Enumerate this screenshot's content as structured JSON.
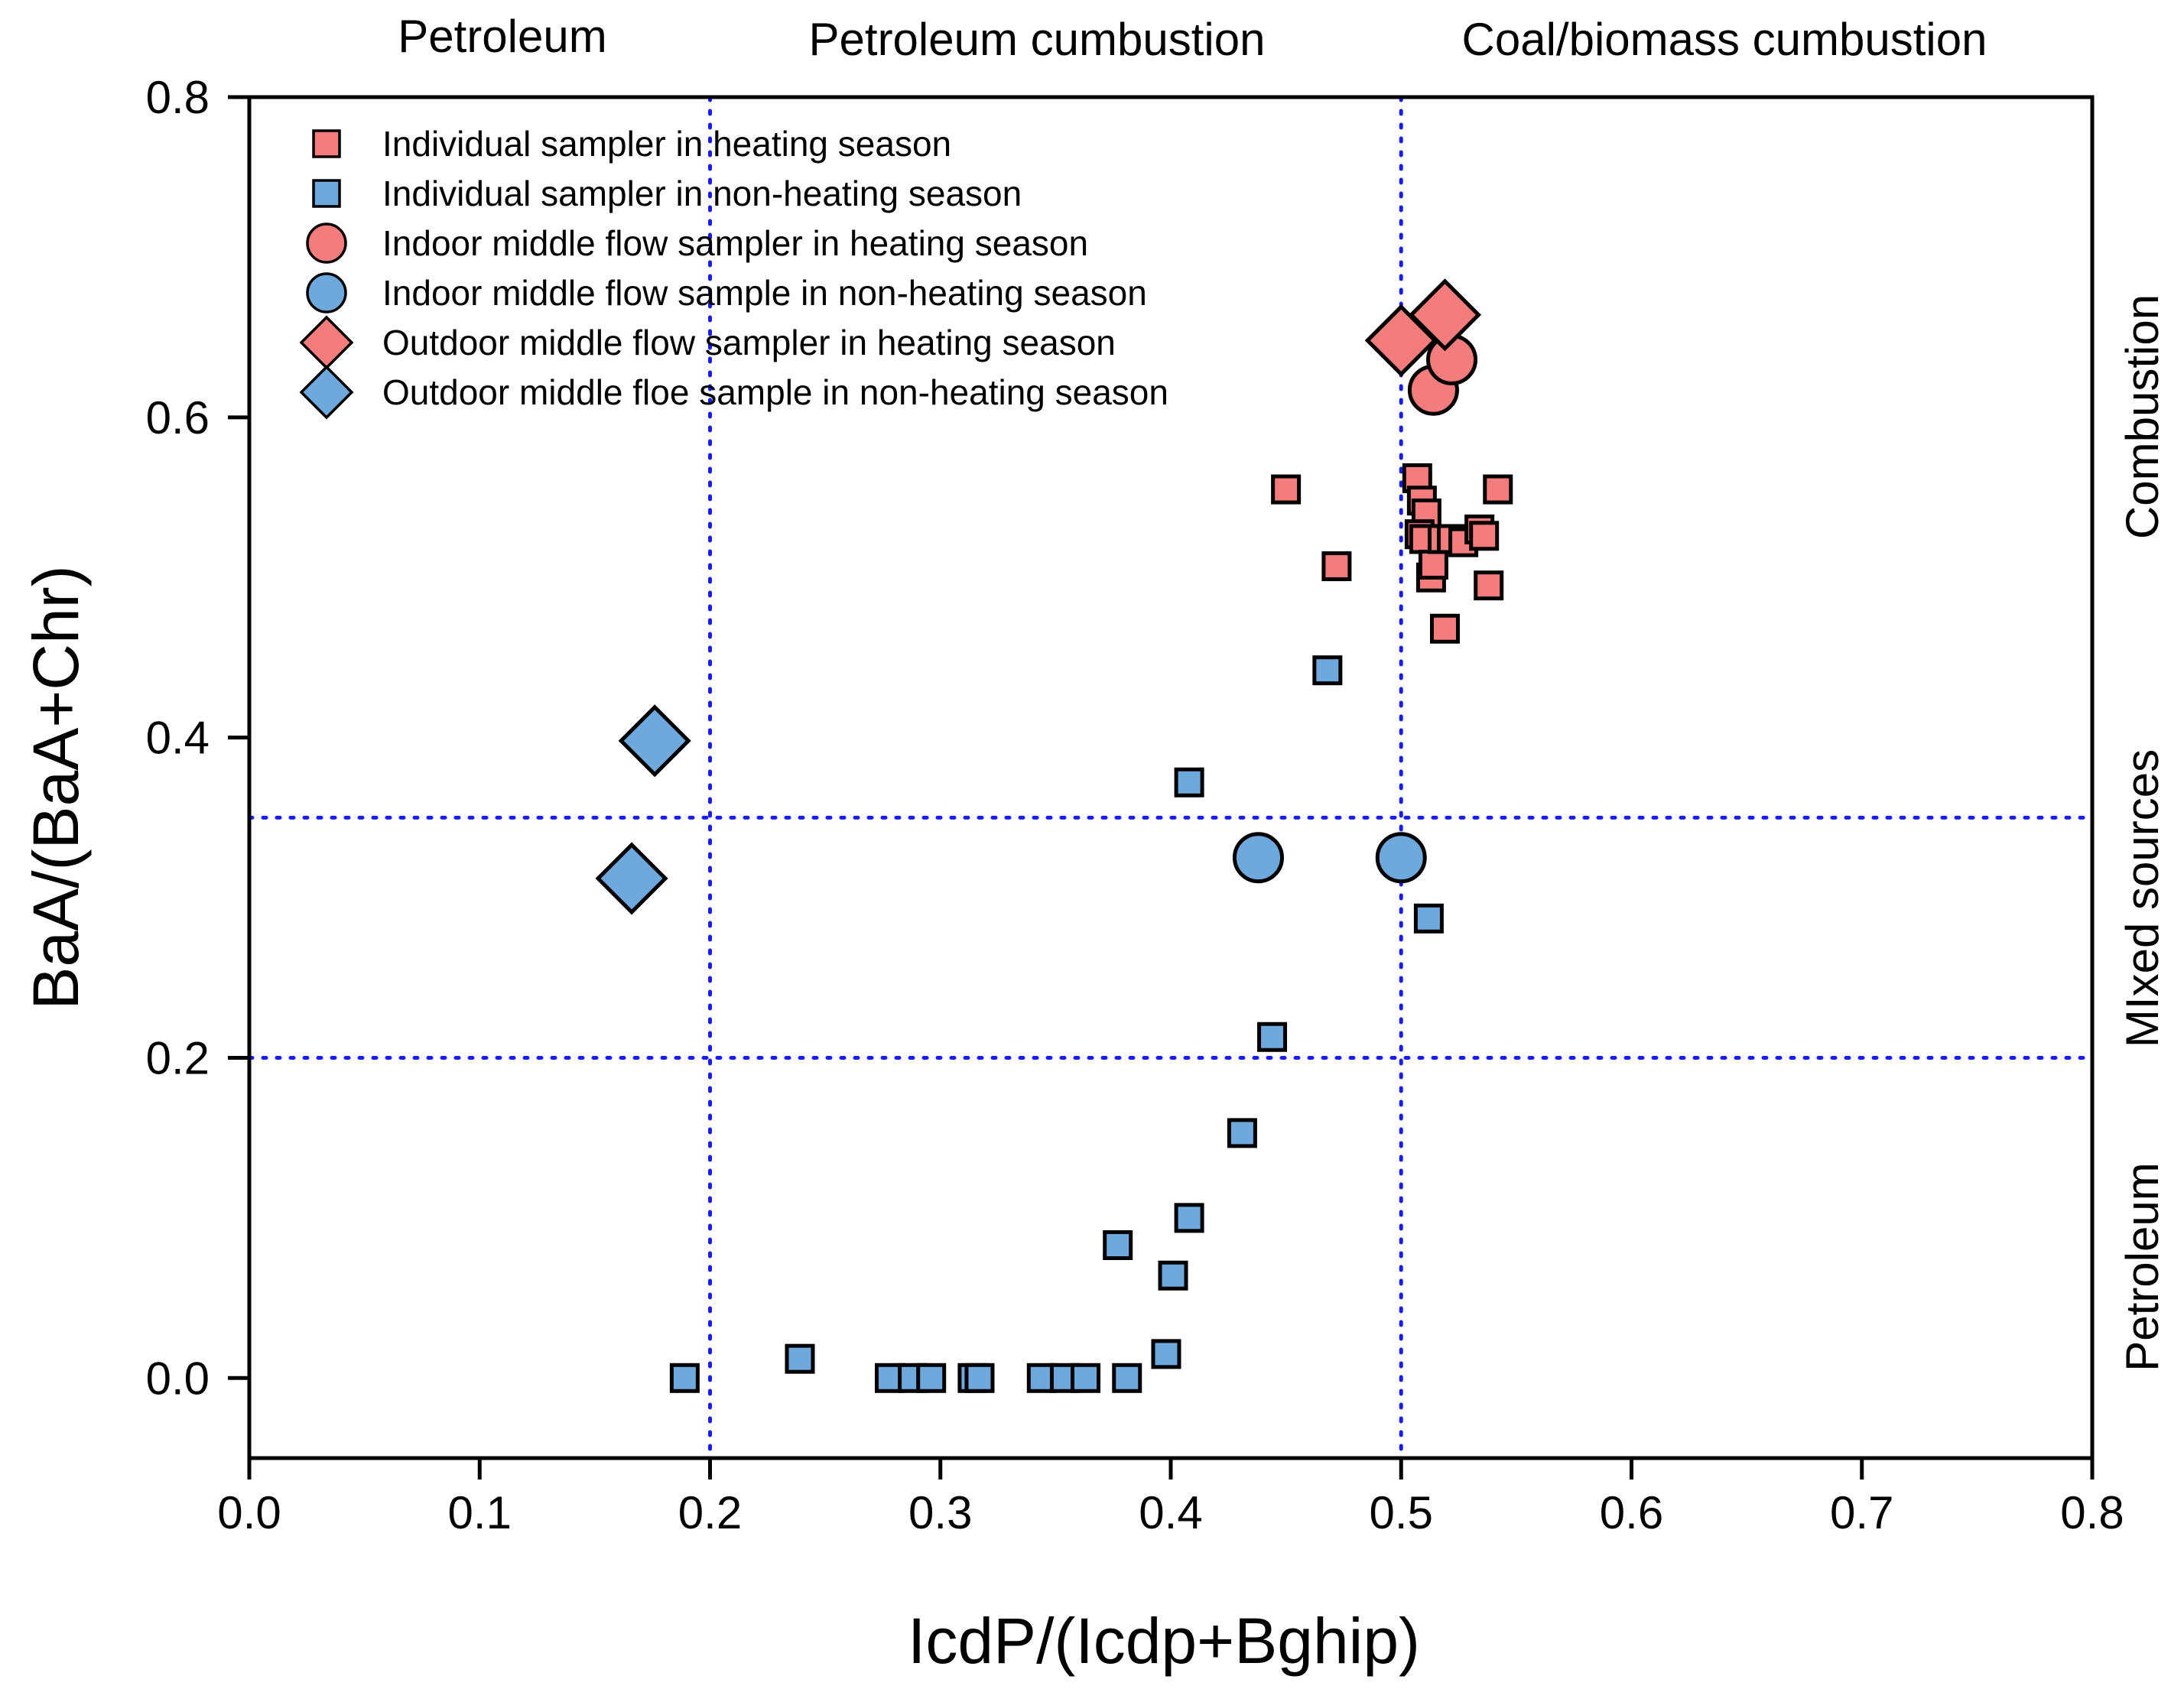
{
  "chart_data": {
    "type": "scatter",
    "xlabel": "IcdP/(Icdp+Bghip)",
    "ylabel": "BaA/(BaA+Chr)",
    "xlim": [
      0.0,
      0.8
    ],
    "ylim": [
      -0.05,
      0.8
    ],
    "x_ticks": [
      "0.0",
      "0.1",
      "0.2",
      "0.3",
      "0.4",
      "0.5",
      "0.6",
      "0.7",
      "0.8"
    ],
    "y_ticks": [
      "0.0",
      "0.2",
      "0.4",
      "0.6",
      "0.8"
    ],
    "grid": false,
    "legend_position": "top-left",
    "reference_lines": {
      "x": [
        0.2,
        0.5
      ],
      "y": [
        0.2,
        0.35
      ],
      "style": "dotted",
      "color": "#1a1aff"
    },
    "region_labels": {
      "top": [
        "Petroleum",
        "Petroleum cumbustion",
        "Coal/biomass cumbustion"
      ],
      "right": [
        "Combustion",
        "MIxed sources",
        "Petroleum"
      ]
    },
    "series": [
      {
        "name": "Individual sampler in heating season",
        "marker": "square",
        "color": "#f47c7c",
        "points": [
          [
            0.45,
            0.555
          ],
          [
            0.472,
            0.507
          ],
          [
            0.507,
            0.562
          ],
          [
            0.509,
            0.548
          ],
          [
            0.511,
            0.54
          ],
          [
            0.508,
            0.527
          ],
          [
            0.51,
            0.524
          ],
          [
            0.513,
            0.5
          ],
          [
            0.514,
            0.508
          ],
          [
            0.518,
            0.524
          ],
          [
            0.519,
            0.468
          ],
          [
            0.522,
            0.524
          ],
          [
            0.527,
            0.522
          ],
          [
            0.534,
            0.53
          ],
          [
            0.536,
            0.526
          ],
          [
            0.538,
            0.495
          ],
          [
            0.542,
            0.555
          ]
        ]
      },
      {
        "name": "Individual sampler in non-heating season",
        "marker": "square",
        "color": "#6fa8dc",
        "points": [
          [
            0.189,
            0.0
          ],
          [
            0.239,
            0.012
          ],
          [
            0.278,
            0.0
          ],
          [
            0.288,
            0.0
          ],
          [
            0.296,
            0.0
          ],
          [
            0.314,
            0.0
          ],
          [
            0.317,
            0.0
          ],
          [
            0.344,
            0.0
          ],
          [
            0.354,
            0.0
          ],
          [
            0.363,
            0.0
          ],
          [
            0.377,
            0.083
          ],
          [
            0.381,
            0.0
          ],
          [
            0.398,
            0.015
          ],
          [
            0.401,
            0.064
          ],
          [
            0.408,
            0.1
          ],
          [
            0.408,
            0.372
          ],
          [
            0.431,
            0.153
          ],
          [
            0.444,
            0.213
          ],
          [
            0.468,
            0.442
          ],
          [
            0.512,
            0.287
          ]
        ]
      },
      {
        "name": "Indoor middle flow sampler in heating season",
        "marker": "circle",
        "color": "#f47c7c",
        "points": [
          [
            0.514,
            0.617
          ],
          [
            0.522,
            0.636
          ]
        ]
      },
      {
        "name": "Indoor middle flow sample in non-heating season",
        "marker": "circle",
        "color": "#6fa8dc",
        "points": [
          [
            0.438,
            0.325
          ],
          [
            0.5,
            0.325
          ]
        ]
      },
      {
        "name": "Outdoor middle flow sampler in heating season",
        "marker": "diamond",
        "color": "#f47c7c",
        "points": [
          [
            0.5,
            0.648
          ],
          [
            0.519,
            0.664
          ]
        ]
      },
      {
        "name": "Outdoor middle floe sample in non-heating season",
        "marker": "diamond",
        "color": "#6fa8dc",
        "points": [
          [
            0.176,
            0.398
          ],
          [
            0.166,
            0.312
          ]
        ]
      }
    ]
  }
}
